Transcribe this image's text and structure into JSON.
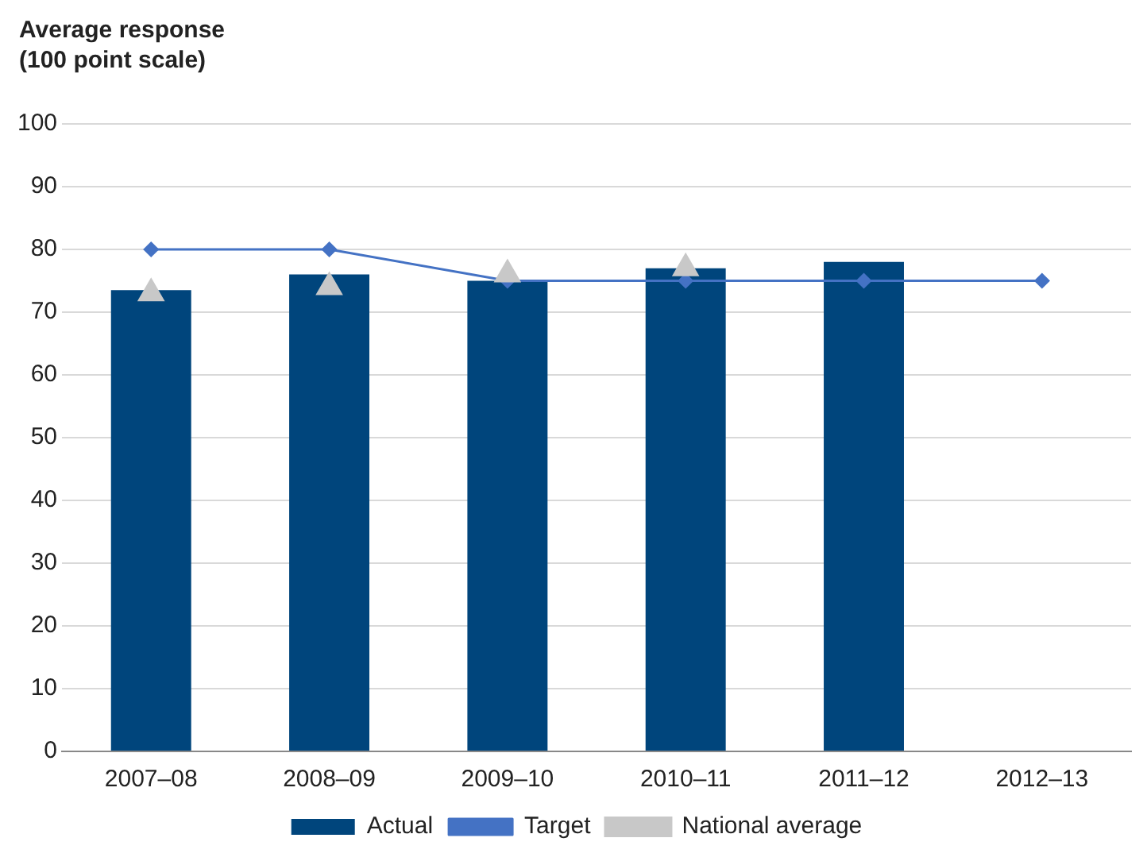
{
  "chart_data": {
    "type": "bar",
    "ylabel": "Average response\n(100 point scale)",
    "categories": [
      "2007–08",
      "2008–09",
      "2009–10",
      "2010–11",
      "2011–12",
      "2012–13"
    ],
    "series": [
      {
        "name": "Actual",
        "color": "#00457c",
        "values": [
          73.5,
          76,
          75,
          77,
          78,
          null
        ]
      },
      {
        "name": "Target",
        "type": "line",
        "color": "#4472c4",
        "marker": "diamond",
        "values": [
          80,
          80,
          75,
          75,
          75,
          75
        ]
      },
      {
        "name": "National average",
        "type": "scatter",
        "color": "#c8c8c8",
        "marker": "triangle",
        "values": [
          73,
          74,
          76,
          77,
          null,
          null
        ]
      }
    ],
    "ylim": [
      0,
      100
    ],
    "yticks": [
      0,
      10,
      20,
      30,
      40,
      50,
      60,
      70,
      80,
      90,
      100
    ],
    "grid": "y",
    "legend": "bottom"
  }
}
